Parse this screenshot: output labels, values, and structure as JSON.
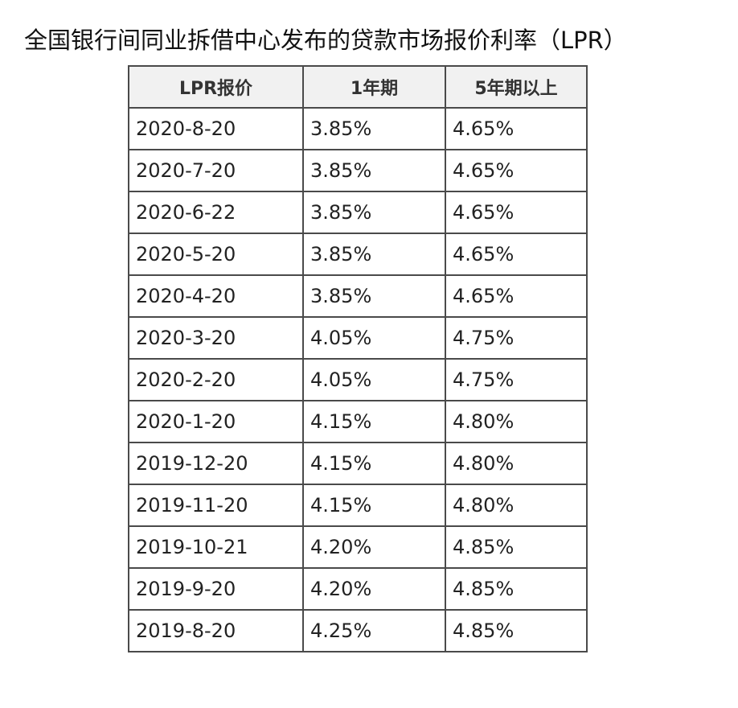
{
  "title": "全国银行间同业拆借中心发布的贷款市场报价利率（LPR）",
  "table": {
    "headers": [
      "LPR报价",
      "1年期",
      "5年期以上"
    ],
    "rows": [
      [
        "2020-8-20",
        "3.85%",
        "4.65%"
      ],
      [
        "2020-7-20",
        "3.85%",
        "4.65%"
      ],
      [
        "2020-6-22",
        "3.85%",
        "4.65%"
      ],
      [
        "2020-5-20",
        "3.85%",
        "4.65%"
      ],
      [
        "2020-4-20",
        "3.85%",
        "4.65%"
      ],
      [
        "2020-3-20",
        "4.05%",
        "4.75%"
      ],
      [
        "2020-2-20",
        "4.05%",
        "4.75%"
      ],
      [
        "2020-1-20",
        "4.15%",
        "4.80%"
      ],
      [
        "2019-12-20",
        "4.15%",
        "4.80%"
      ],
      [
        "2019-11-20",
        "4.15%",
        "4.80%"
      ],
      [
        "2019-10-21",
        "4.20%",
        "4.85%"
      ],
      [
        "2019-9-20",
        "4.20%",
        "4.85%"
      ],
      [
        "2019-8-20",
        "4.25%",
        "4.85%"
      ]
    ]
  }
}
